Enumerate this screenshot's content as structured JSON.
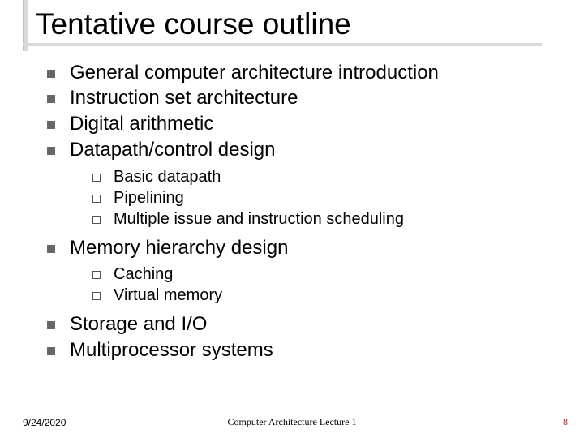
{
  "title": "Tentative course outline",
  "bullets": {
    "b0": "General computer architecture introduction",
    "b1": "Instruction set architecture",
    "b2": "Digital arithmetic",
    "b3": "Datapath/control design",
    "b3_sub": {
      "s0": "Basic datapath",
      "s1": "Pipelining",
      "s2": "Multiple issue and instruction scheduling"
    },
    "b4": "Memory hierarchy design",
    "b4_sub": {
      "s0": "Caching",
      "s1": "Virtual memory"
    },
    "b5": "Storage and I/O",
    "b6": "Multiprocessor systems"
  },
  "footer": {
    "date": "9/24/2020",
    "center": "Computer Architecture Lecture 1",
    "page": "8"
  },
  "colors": {
    "title_text": "#000000",
    "body_text": "#000000",
    "bullet_l1": "#666666",
    "bullet_l2_border": "#555555",
    "rule": "#d9d9d9",
    "page_number": "#b02020",
    "background": "#ffffff"
  },
  "fonts": {
    "title_size_pt": 28,
    "body_size_pt": 18,
    "sub_size_pt": 15,
    "footer_size_pt": 9
  }
}
